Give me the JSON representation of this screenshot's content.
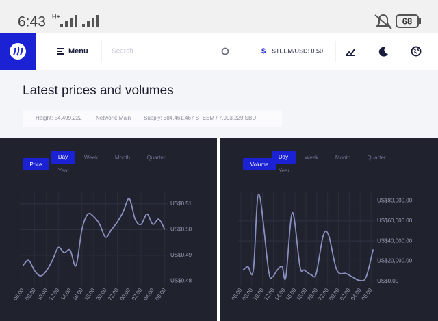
{
  "status_bar": {
    "time": "6:43",
    "network": "H+",
    "battery": "68"
  },
  "header": {
    "menu": "Menu",
    "search_placeholder": "Search",
    "currency_symbol": "$",
    "price": "STEEM/USD: 0.50"
  },
  "section": {
    "title": "Latest prices and volumes",
    "height": "Height: 54,499,222",
    "network": "Network: Main",
    "supply": "Supply: 384,461,467 STEEM / 7,903,229 SBD"
  },
  "chart_data": [
    {
      "type": "line",
      "metric_button": "Price",
      "periods": [
        "Day",
        "Week",
        "Month",
        "Quarter",
        "Year"
      ],
      "color": "#8a8fbf",
      "grid": true,
      "x": [
        0,
        1,
        2,
        3,
        4,
        5,
        6,
        7,
        8,
        9,
        10,
        11,
        12,
        13,
        14,
        15,
        16,
        17,
        18,
        19,
        20,
        21,
        22,
        23,
        24
      ],
      "values": [
        0.486,
        0.488,
        0.484,
        0.482,
        0.484,
        0.488,
        0.493,
        0.491,
        0.492,
        0.486,
        0.5,
        0.506,
        0.505,
        0.502,
        0.497,
        0.5,
        0.503,
        0.507,
        0.512,
        0.504,
        0.502,
        0.506,
        0.502,
        0.504,
        0.5
      ],
      "xlim": [
        -0.5,
        24.5
      ],
      "xticks": [
        {
          "value": 0,
          "label": "06:00"
        },
        {
          "value": 2,
          "label": "08:00"
        },
        {
          "value": 4,
          "label": "10:00"
        },
        {
          "value": 6,
          "label": "12:00"
        },
        {
          "value": 8,
          "label": "14:00"
        },
        {
          "value": 10,
          "label": "16:00"
        },
        {
          "value": 12,
          "label": "18:00"
        },
        {
          "value": 14,
          "label": "20:00"
        },
        {
          "value": 16,
          "label": "22:00"
        },
        {
          "value": 18,
          "label": "00:00"
        },
        {
          "value": 20,
          "label": "02:00"
        },
        {
          "value": 22,
          "label": "04:00"
        },
        {
          "value": 24,
          "label": "06:00"
        }
      ],
      "ylim": [
        0.478,
        0.515
      ],
      "yticks": [
        {
          "value": 0.48,
          "label": "US$0.48"
        },
        {
          "value": 0.49,
          "label": "US$0.49"
        },
        {
          "value": 0.5,
          "label": "US$0.50"
        },
        {
          "value": 0.51,
          "label": "US$0.51"
        }
      ]
    },
    {
      "type": "line",
      "metric_button": "Volume",
      "periods": [
        "Day",
        "Week",
        "Month",
        "Quarter",
        "Year"
      ],
      "color": "#8a8fbf",
      "grid": true,
      "x": [
        0.4,
        1.3,
        2.3,
        3.3,
        5.1,
        5.8,
        6.7,
        7.6,
        8.3,
        9.5,
        10.9,
        11.7,
        13.0,
        13.9,
        15.2,
        16.2,
        17.7,
        19.4,
        20.6,
        21.9,
        23.1,
        24.4
      ],
      "values": [
        11000,
        14500,
        11000,
        86900,
        11000,
        4100,
        11000,
        14500,
        4100,
        68300,
        14500,
        11000,
        6200,
        7600,
        45500,
        45500,
        11000,
        7600,
        4100,
        700,
        4100,
        31700
      ],
      "xlim": [
        -0.5,
        24.5
      ],
      "xticks": [
        {
          "value": 0,
          "label": "06:00"
        },
        {
          "value": 2,
          "label": "08:00"
        },
        {
          "value": 4,
          "label": "10:00"
        },
        {
          "value": 6,
          "label": "12:00"
        },
        {
          "value": 8,
          "label": "14:00"
        },
        {
          "value": 10,
          "label": "16:00"
        },
        {
          "value": 12,
          "label": "18:00"
        },
        {
          "value": 14,
          "label": "20:00"
        },
        {
          "value": 16,
          "label": "22:00"
        },
        {
          "value": 18,
          "label": "00:00"
        },
        {
          "value": 20,
          "label": "02:00"
        },
        {
          "value": 22,
          "label": "04:00"
        },
        {
          "value": 24,
          "label": "06:00"
        }
      ],
      "ylim": [
        -5000,
        90000
      ],
      "yticks": [
        {
          "value": 0,
          "label": "US$0.00"
        },
        {
          "value": 20000,
          "label": "US$20,000.00"
        },
        {
          "value": 40000,
          "label": "US$40,000.00"
        },
        {
          "value": 60000,
          "label": "US$60,000.00"
        },
        {
          "value": 80000,
          "label": "US$80,000.00"
        }
      ]
    }
  ]
}
